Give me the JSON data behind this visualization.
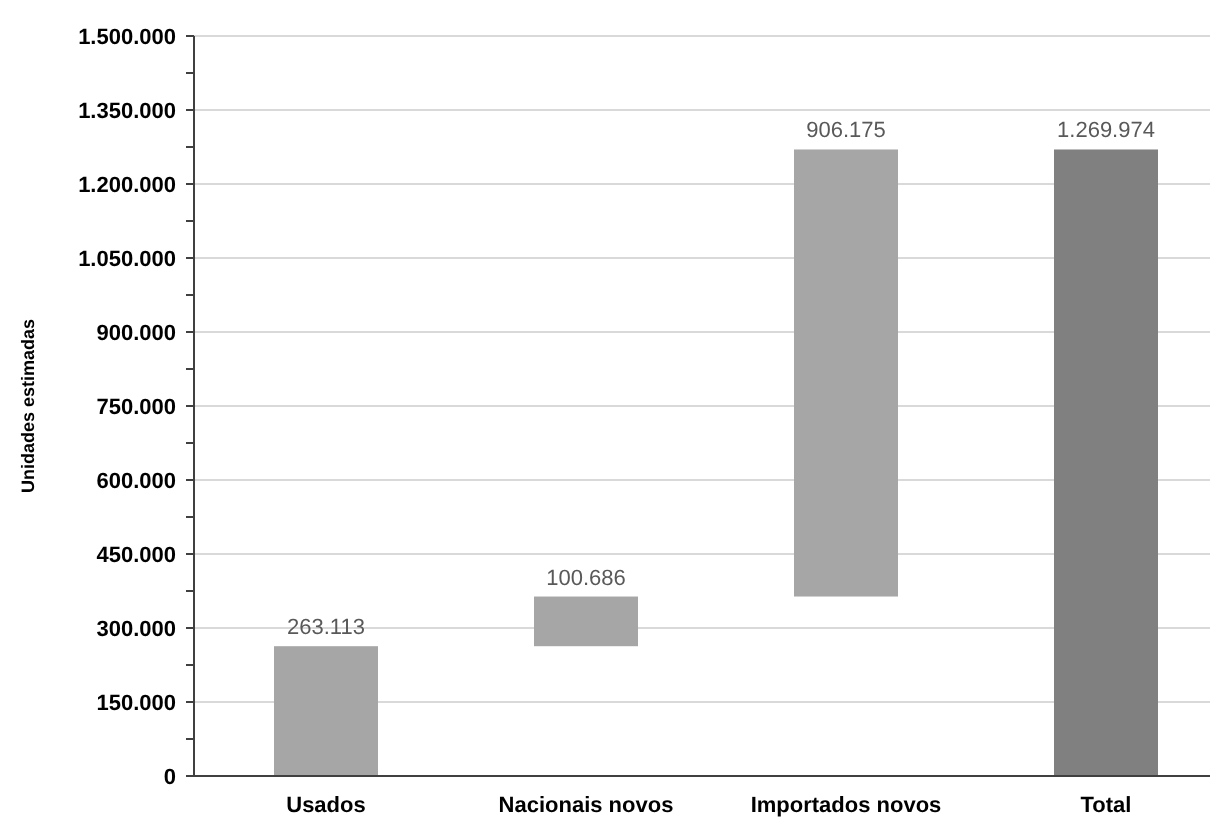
{
  "chart_data": {
    "type": "bar",
    "ylabel": "Unidades estimadas",
    "categories": [
      "Usados",
      "Nacionais novos",
      "Importados novos",
      "Total"
    ],
    "values": [
      263113,
      100686,
      906175,
      1269974
    ],
    "base": [
      0,
      263113,
      363799,
      0
    ],
    "colors": [
      "#a6a6a6",
      "#a6a6a6",
      "#a6a6a6",
      "#808080"
    ],
    "ylim": [
      0,
      1500000
    ],
    "yticks": [
      {
        "value": 0,
        "label": "0"
      },
      {
        "value": 75000,
        "label": null
      },
      {
        "value": 150000,
        "label": "150.000"
      },
      {
        "value": 225000,
        "label": null
      },
      {
        "value": 300000,
        "label": "300.000"
      },
      {
        "value": 375000,
        "label": null
      },
      {
        "value": 450000,
        "label": "450.000"
      },
      {
        "value": 525000,
        "label": null
      },
      {
        "value": 600000,
        "label": "600.000"
      },
      {
        "value": 675000,
        "label": null
      },
      {
        "value": 750000,
        "label": "750.000"
      },
      {
        "value": 825000,
        "label": null
      },
      {
        "value": 900000,
        "label": "900.000"
      },
      {
        "value": 975000,
        "label": null
      },
      {
        "value": 1050000,
        "label": "1.050.000"
      },
      {
        "value": 1125000,
        "label": null
      },
      {
        "value": 1200000,
        "label": "1.200.000"
      },
      {
        "value": 1275000,
        "label": null
      },
      {
        "value": 1350000,
        "label": "1.350.000"
      },
      {
        "value": 1425000,
        "label": null
      },
      {
        "value": 1500000,
        "label": "1.500.000"
      }
    ],
    "value_labels": [
      "263.113",
      "100.686",
      "906.175",
      "1.269.974"
    ],
    "grid": "y"
  }
}
